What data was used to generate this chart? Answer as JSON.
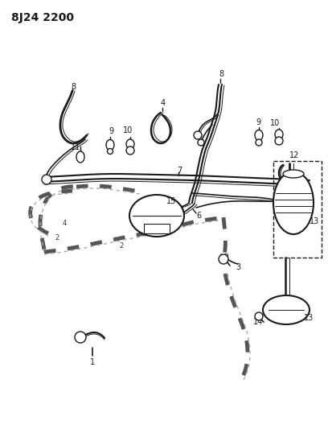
{
  "title": "8J24 2200",
  "bg_color": "#ffffff",
  "title_fontsize": 10,
  "fig_width": 4.08,
  "fig_height": 5.33,
  "dpi": 100,
  "line_color": "#1a1a1a",
  "line_color2": "#444444",
  "dashed_color": "#555555"
}
